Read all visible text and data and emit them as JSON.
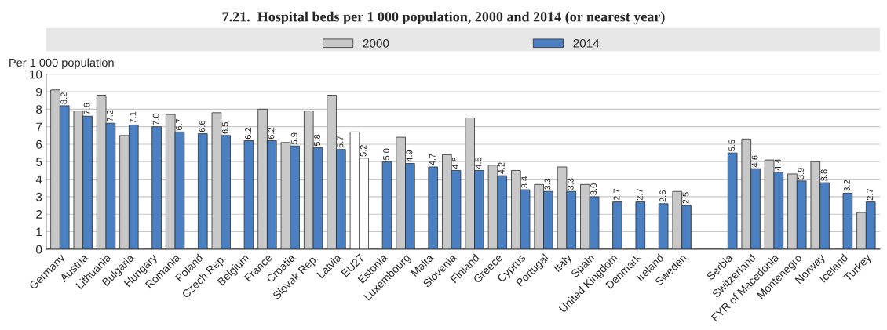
{
  "chart_data": {
    "type": "bar",
    "title": "7.21.  Hospital beds per 1 000 population, 2000 and 2014 (or nearest year)",
    "ylabel": "Per 1 000 population",
    "categories": [
      "Germany",
      "Austria",
      "Lithuania",
      "Bulgaria",
      "Hungary",
      "Romania",
      "Poland",
      "Czech Rep.",
      "Belgium",
      "France",
      "Croatia",
      "Slovak Rep.",
      "Latvia",
      "EU27",
      "Estonia",
      "Luxembourg",
      "Malta",
      "Slovenia",
      "Finland",
      "Greece",
      "Cyprus",
      "Portugal",
      "Italy",
      "Spain",
      "United Kingdom",
      "Denmark",
      "Ireland",
      "Sweden",
      null,
      "Serbia",
      "Switzerland",
      "FYR of Macedonia",
      "Montenegro",
      "Norway",
      "Iceland",
      "Turkey"
    ],
    "series": [
      {
        "name": "2000",
        "color": "#c8c8c8",
        "colors": [
          "#c8c8c8",
          "#c8c8c8",
          "#c8c8c8",
          "#c8c8c8",
          "#c8c8c8",
          "#c8c8c8",
          "#c8c8c8",
          "#c8c8c8",
          "#c8c8c8",
          "#c8c8c8",
          "#c8c8c8",
          "#c8c8c8",
          "#c8c8c8",
          "#ffffff",
          "#c8c8c8",
          "#c8c8c8",
          "#c8c8c8",
          "#c8c8c8",
          "#c8c8c8",
          "#c8c8c8",
          "#c8c8c8",
          "#c8c8c8",
          "#c8c8c8",
          "#c8c8c8",
          "#c8c8c8",
          "#c8c8c8",
          "#c8c8c8",
          "#c8c8c8",
          "#c8c8c8",
          "#c8c8c8",
          "#c8c8c8",
          "#c8c8c8",
          "#c8c8c8",
          "#c8c8c8",
          "#c8c8c8",
          "#c8c8c8"
        ],
        "values": [
          9.1,
          7.9,
          8.8,
          6.5,
          null,
          7.7,
          null,
          7.8,
          null,
          8.0,
          6.1,
          7.9,
          8.8,
          6.7,
          null,
          6.4,
          null,
          5.4,
          7.5,
          4.8,
          4.5,
          3.7,
          4.7,
          3.7,
          null,
          null,
          null,
          3.3,
          null,
          null,
          6.3,
          5.1,
          4.3,
          5.0,
          null,
          2.1
        ]
      },
      {
        "name": "2014",
        "color": "#4a7fc1",
        "colors": [
          "#4a7fc1",
          "#4a7fc1",
          "#4a7fc1",
          "#4a7fc1",
          "#4a7fc1",
          "#4a7fc1",
          "#4a7fc1",
          "#4a7fc1",
          "#4a7fc1",
          "#4a7fc1",
          "#4a7fc1",
          "#4a7fc1",
          "#4a7fc1",
          "#ffffff",
          "#4a7fc1",
          "#4a7fc1",
          "#4a7fc1",
          "#4a7fc1",
          "#4a7fc1",
          "#4a7fc1",
          "#4a7fc1",
          "#4a7fc1",
          "#4a7fc1",
          "#4a7fc1",
          "#4a7fc1",
          "#4a7fc1",
          "#4a7fc1",
          "#4a7fc1",
          "#4a7fc1",
          "#4a7fc1",
          "#4a7fc1",
          "#4a7fc1",
          "#4a7fc1",
          "#4a7fc1",
          "#4a7fc1",
          "#4a7fc1"
        ],
        "values": [
          8.2,
          7.6,
          7.2,
          7.1,
          7.0,
          6.7,
          6.6,
          6.5,
          6.2,
          6.2,
          5.9,
          5.8,
          5.7,
          5.2,
          5.0,
          4.9,
          4.7,
          4.5,
          4.5,
          4.2,
          3.4,
          3.3,
          3.3,
          3.0,
          2.7,
          2.7,
          2.6,
          2.5,
          null,
          5.5,
          4.6,
          4.4,
          3.9,
          3.8,
          3.2,
          2.7
        ],
        "value_labels": [
          "8.2",
          "7.6",
          "7.2",
          "7.1",
          "7.0",
          "6.7",
          "6.6",
          "6.5",
          "6.2",
          "6.2",
          "5.9",
          "5.8",
          "5.7",
          "5.2",
          "5.0",
          "4.9",
          "4.7",
          "4.5",
          "4.5",
          "4.2",
          "3.4",
          "3.3",
          "3.3",
          "3.0",
          "2.7",
          "2.7",
          "2.6",
          "2.5",
          null,
          "5.5",
          "4.6",
          "4.4",
          "3.9",
          "3.8",
          "3.2",
          "2.7"
        ]
      }
    ],
    "ylim": [
      0,
      10
    ],
    "yticks": [
      0,
      1,
      2,
      3,
      4,
      5,
      6,
      7,
      8,
      9,
      10
    ],
    "grid": "y",
    "legend": "top"
  }
}
